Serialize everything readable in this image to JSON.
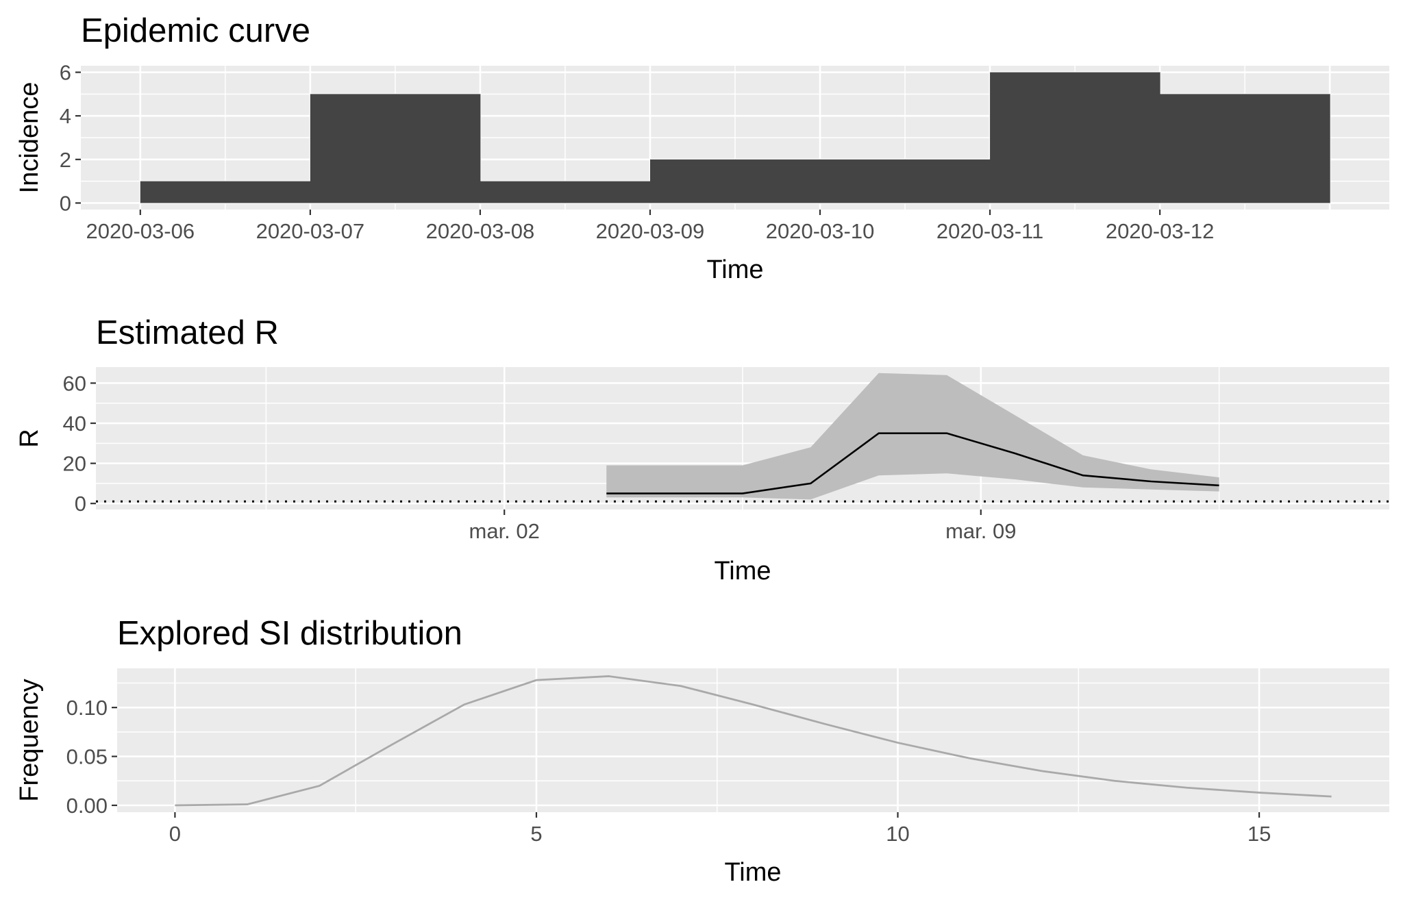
{
  "chart_data": [
    {
      "type": "bar",
      "title": "Epidemic curve",
      "xlabel": "Time",
      "ylabel": "Incidence",
      "categories": [
        "2020-03-06",
        "2020-03-06",
        "2020-03-07",
        "2020-03-07",
        "2020-03-08",
        "2020-03-08",
        "2020-03-09",
        "2020-03-09",
        "2020-03-10",
        "2020-03-10",
        "2020-03-11",
        "2020-03-11",
        "2020-03-12",
        "2020-03-12"
      ],
      "values": [
        1,
        1,
        5,
        5,
        1,
        1,
        2,
        2,
        2,
        2,
        6,
        6,
        5,
        5
      ],
      "xticks": [
        "2020-03-06",
        "2020-03-07",
        "2020-03-08",
        "2020-03-09",
        "2020-03-10",
        "2020-03-11",
        "2020-03-12"
      ],
      "yticks": [
        "0",
        "2",
        "4",
        "6"
      ],
      "ylim": [
        -0.3,
        6.3
      ],
      "grid": true,
      "colors": {
        "bar": "#444444",
        "panel": "#ebebeb",
        "grid": "#ffffff"
      }
    },
    {
      "type": "line",
      "title": "Estimated R",
      "xlabel": "Time",
      "ylabel": "R",
      "x": [
        "2020-03-03",
        "2020-03-04",
        "2020-03-05",
        "2020-03-06",
        "2020-03-07",
        "2020-03-08",
        "2020-03-09",
        "2020-03-10",
        "2020-03-11",
        "2020-03-12"
      ],
      "series": [
        {
          "role": "mean",
          "values": [
            5,
            5,
            5,
            10,
            35,
            35,
            25,
            14,
            11,
            9
          ]
        },
        {
          "role": "upper",
          "values": [
            19,
            19,
            19,
            28,
            65,
            64,
            44,
            24,
            17,
            13
          ]
        },
        {
          "role": "lower",
          "values": [
            3,
            3,
            3,
            2,
            14,
            15,
            12,
            8,
            7,
            6
          ]
        }
      ],
      "reference_line": 1,
      "xticks": [
        "mar. 02",
        "mar. 09"
      ],
      "xtick_dates": [
        "2020-03-02",
        "2020-03-09"
      ],
      "xlim": [
        "2020-02-25",
        "2020-03-15"
      ],
      "yticks": [
        "0",
        "20",
        "40",
        "60"
      ],
      "ylim": [
        -3,
        68
      ],
      "grid": true,
      "colors": {
        "mean": "#000000",
        "band": "#bdbdbd",
        "panel": "#ebebeb"
      }
    },
    {
      "type": "line",
      "title": "Explored SI distribution",
      "xlabel": "Time",
      "ylabel": "Frequency",
      "x": [
        0,
        1,
        2,
        3,
        4,
        5,
        6,
        7,
        8,
        9,
        10,
        11,
        12,
        13,
        14,
        15,
        16
      ],
      "series": [
        {
          "values": [
            0.0,
            0.001,
            0.02,
            0.062,
            0.103,
            0.128,
            0.132,
            0.122,
            0.103,
            0.083,
            0.064,
            0.048,
            0.035,
            0.025,
            0.018,
            0.013,
            0.009
          ]
        }
      ],
      "xticks": [
        "0",
        "5",
        "10",
        "15"
      ],
      "yticks": [
        "0.00",
        "0.05",
        "0.10"
      ],
      "xlim": [
        -0.8,
        16.8
      ],
      "ylim": [
        -0.007,
        0.14
      ],
      "grid": true,
      "colors": {
        "line": "#a9a9a9",
        "panel": "#ebebeb"
      }
    }
  ]
}
